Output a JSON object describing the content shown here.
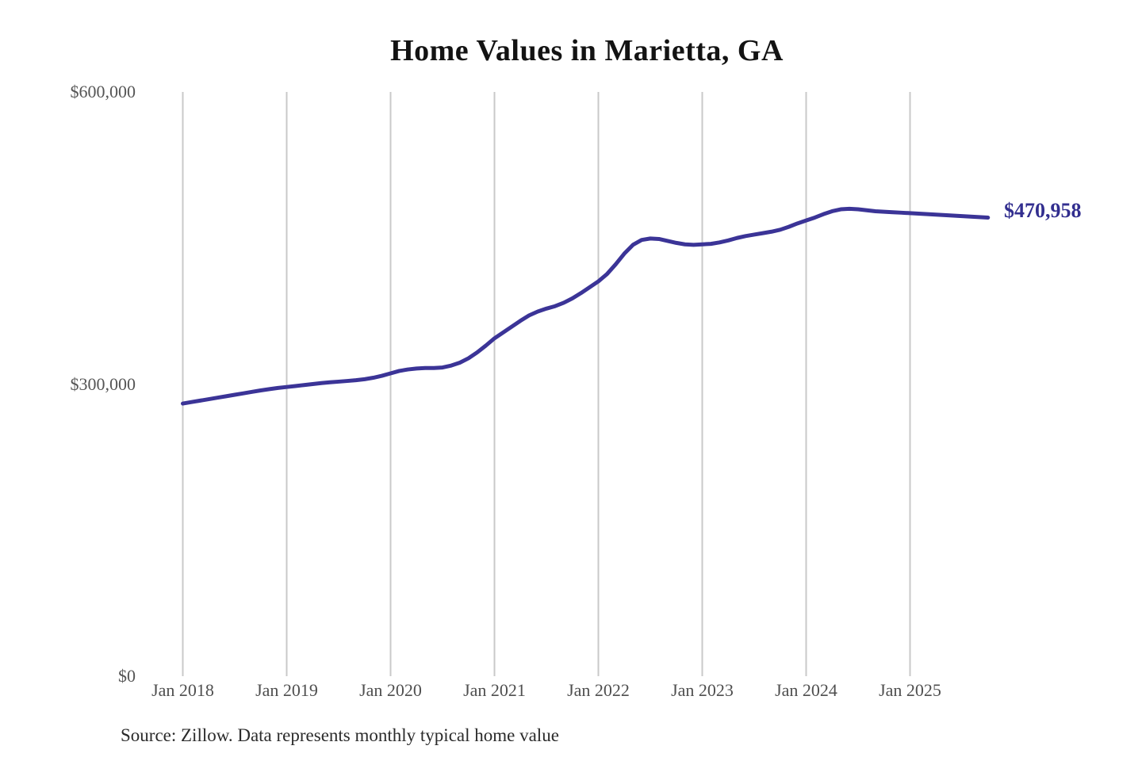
{
  "chart_data": {
    "type": "line",
    "title": "Home Values in Marietta, GA",
    "source_note": "Source: Zillow. Data represents monthly typical home value",
    "xlabel": "",
    "ylabel": "",
    "ylim": [
      0,
      600000
    ],
    "grid": "vertical-gridlines-only",
    "background_color": "#ffffff",
    "gridline_color": "#c9c9c9",
    "y_ticks": [
      {
        "label": "$0",
        "value": 0
      },
      {
        "label": "$300,000",
        "value": 300000
      },
      {
        "label": "$600,000",
        "value": 600000
      }
    ],
    "x_ticks": [
      {
        "label": "Jan 2018",
        "month_index": 0
      },
      {
        "label": "Jan 2019",
        "month_index": 12
      },
      {
        "label": "Jan 2020",
        "month_index": 24
      },
      {
        "label": "Jan 2021",
        "month_index": 36
      },
      {
        "label": "Jan 2022",
        "month_index": 48
      },
      {
        "label": "Jan 2023",
        "month_index": 60
      },
      {
        "label": "Jan 2024",
        "month_index": 72
      },
      {
        "label": "Jan 2025",
        "month_index": 84
      }
    ],
    "series": [
      {
        "name": "Monthly typical home value",
        "color": "#3b3497",
        "final_value": 470958,
        "final_value_label": "$470,958",
        "x_months": [
          "2018-01",
          "2018-02",
          "2018-03",
          "2018-04",
          "2018-05",
          "2018-06",
          "2018-07",
          "2018-08",
          "2018-09",
          "2018-10",
          "2018-11",
          "2018-12",
          "2019-01",
          "2019-02",
          "2019-03",
          "2019-04",
          "2019-05",
          "2019-06",
          "2019-07",
          "2019-08",
          "2019-09",
          "2019-10",
          "2019-11",
          "2019-12",
          "2020-01",
          "2020-02",
          "2020-03",
          "2020-04",
          "2020-05",
          "2020-06",
          "2020-07",
          "2020-08",
          "2020-09",
          "2020-10",
          "2020-11",
          "2020-12",
          "2021-01",
          "2021-02",
          "2021-03",
          "2021-04",
          "2021-05",
          "2021-06",
          "2021-07",
          "2021-08",
          "2021-09",
          "2021-10",
          "2021-11",
          "2021-12",
          "2022-01",
          "2022-02",
          "2022-03",
          "2022-04",
          "2022-05",
          "2022-06",
          "2022-07",
          "2022-08",
          "2022-09",
          "2022-10",
          "2022-11",
          "2022-12",
          "2023-01",
          "2023-02",
          "2023-03",
          "2023-04",
          "2023-05",
          "2023-06",
          "2023-07",
          "2023-08",
          "2023-09",
          "2023-10",
          "2023-11",
          "2023-12",
          "2024-01",
          "2024-02",
          "2024-03",
          "2024-04",
          "2024-05",
          "2024-06",
          "2024-07",
          "2024-08",
          "2024-09",
          "2024-10",
          "2024-11",
          "2024-12",
          "2025-01",
          "2025-02",
          "2025-03",
          "2025-04",
          "2025-05",
          "2025-06",
          "2025-07",
          "2025-08",
          "2025-09",
          "2025-10"
        ],
        "values": [
          280000,
          281500,
          283000,
          284500,
          286000,
          287500,
          289000,
          290500,
          292000,
          293500,
          294800,
          296000,
          297000,
          298000,
          299000,
          300000,
          301000,
          301800,
          302500,
          303200,
          304000,
          305000,
          306500,
          308500,
          311000,
          313500,
          315000,
          316000,
          316500,
          316500,
          317000,
          319000,
          322000,
          326500,
          332500,
          339500,
          347000,
          353000,
          359000,
          365000,
          370500,
          374500,
          377500,
          380000,
          383500,
          388000,
          393500,
          399500,
          405500,
          413000,
          423000,
          434000,
          443000,
          448000,
          449500,
          449000,
          447000,
          445000,
          443500,
          443000,
          443500,
          444000,
          445500,
          447500,
          450000,
          452000,
          453500,
          455000,
          456500,
          458500,
          461500,
          465000,
          468000,
          471000,
          474500,
          477500,
          479500,
          480000,
          479500,
          478500,
          477500,
          477000,
          476500,
          476000,
          475500,
          475000,
          474500,
          474000,
          473500,
          473000,
          472500,
          472000,
          471500,
          470958
        ]
      }
    ]
  }
}
